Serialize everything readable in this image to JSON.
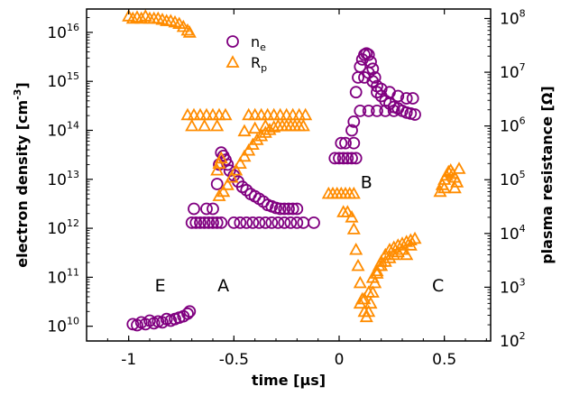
{
  "chart_data": {
    "type": "scatter",
    "xlabel": "time [µs]",
    "ylabel_left": "electron density [cm",
    "ylabel_left_sup": "-3",
    "ylabel_left_end": "]",
    "ylabel_right": "plasma resistance [Ω]",
    "xlim": [
      -1.2,
      0.72
    ],
    "x_ticks": [
      -1,
      -0.5,
      0,
      0.5
    ],
    "x_tick_labels": [
      "-1",
      "-0.5",
      "0",
      "0.5"
    ],
    "y_left_scale": "log",
    "y_left_lim": [
      5000000000.0,
      3e+16
    ],
    "y_left_ticks": [
      10000000000.0,
      100000000000.0,
      1000000000000.0,
      10000000000000.0,
      100000000000000.0,
      1000000000000000.0,
      1e+16
    ],
    "y_left_tick_mantissa": "10",
    "y_left_tick_exponents": [
      "10",
      "11",
      "12",
      "13",
      "14",
      "15",
      "16"
    ],
    "y_right_scale": "log",
    "y_right_lim": [
      100,
      150000000.0
    ],
    "y_right_ticks": [
      100,
      1000,
      10000,
      100000,
      1000000,
      10000000,
      100000000
    ],
    "y_right_tick_mantissa": "10",
    "y_right_tick_exponents": [
      "2",
      "3",
      "4",
      "5",
      "6",
      "7",
      "8"
    ],
    "legend_placement": "top-center",
    "colors": {
      "ne": "#800080",
      "rp": "#ff8c00"
    },
    "annotations": [
      {
        "text": "E",
        "x": -0.85,
        "y_left": 70000000000.0
      },
      {
        "text": "A",
        "x": -0.55,
        "y_left": 70000000000.0
      },
      {
        "text": "B",
        "x": 0.13,
        "y_left": 9000000000000.0
      },
      {
        "text": "C",
        "x": 0.47,
        "y_left": 70000000000.0
      }
    ],
    "series": [
      {
        "name": "n",
        "name_sub": "e",
        "marker": "circle",
        "axis": "left",
        "points": [
          [
            -0.98,
            11000000000.0
          ],
          [
            -0.96,
            10500000000.0
          ],
          [
            -0.94,
            12000000000.0
          ],
          [
            -0.92,
            11000000000.0
          ],
          [
            -0.9,
            13000000000.0
          ],
          [
            -0.88,
            11500000000.0
          ],
          [
            -0.86,
            12500000000.0
          ],
          [
            -0.84,
            12000000000.0
          ],
          [
            -0.82,
            14000000000.0
          ],
          [
            -0.8,
            13000000000.0
          ],
          [
            -0.78,
            14000000000.0
          ],
          [
            -0.76,
            15000000000.0
          ],
          [
            -0.74,
            16000000000.0
          ],
          [
            -0.72,
            18000000000.0
          ],
          [
            -0.71,
            20000000000.0
          ],
          [
            -0.7,
            1300000000000.0
          ],
          [
            -0.68,
            1300000000000.0
          ],
          [
            -0.66,
            1300000000000.0
          ],
          [
            -0.64,
            1300000000000.0
          ],
          [
            -0.62,
            1300000000000.0
          ],
          [
            -0.6,
            1300000000000.0
          ],
          [
            -0.58,
            1300000000000.0
          ],
          [
            -0.56,
            1300000000000.0
          ],
          [
            -0.69,
            2500000000000.0
          ],
          [
            -0.63,
            2500000000000.0
          ],
          [
            -0.6,
            2500000000000.0
          ],
          [
            -0.58,
            8000000000000.0
          ],
          [
            -0.57,
            20000000000000.0
          ],
          [
            -0.56,
            35000000000000.0
          ],
          [
            -0.55,
            30000000000000.0
          ],
          [
            -0.54,
            25000000000000.0
          ],
          [
            -0.53,
            20000000000000.0
          ],
          [
            -0.52,
            15000000000000.0
          ],
          [
            -0.5,
            12000000000000.0
          ],
          [
            -0.48,
            9000000000000.0
          ],
          [
            -0.46,
            7000000000000.0
          ],
          [
            -0.44,
            6000000000000.0
          ],
          [
            -0.42,
            5000000000000.0
          ],
          [
            -0.4,
            4500000000000.0
          ],
          [
            -0.38,
            4000000000000.0
          ],
          [
            -0.36,
            3500000000000.0
          ],
          [
            -0.34,
            3000000000000.0
          ],
          [
            -0.32,
            2800000000000.0
          ],
          [
            -0.3,
            2600000000000.0
          ],
          [
            -0.28,
            2500000000000.0
          ],
          [
            -0.26,
            2500000000000.0
          ],
          [
            -0.24,
            2500000000000.0
          ],
          [
            -0.22,
            2500000000000.0
          ],
          [
            -0.2,
            2500000000000.0
          ],
          [
            -0.5,
            1300000000000.0
          ],
          [
            -0.47,
            1300000000000.0
          ],
          [
            -0.44,
            1300000000000.0
          ],
          [
            -0.41,
            1300000000000.0
          ],
          [
            -0.38,
            1300000000000.0
          ],
          [
            -0.35,
            1300000000000.0
          ],
          [
            -0.32,
            1300000000000.0
          ],
          [
            -0.29,
            1300000000000.0
          ],
          [
            -0.26,
            1300000000000.0
          ],
          [
            -0.23,
            1300000000000.0
          ],
          [
            -0.2,
            1300000000000.0
          ],
          [
            -0.17,
            1300000000000.0
          ],
          [
            -0.12,
            1300000000000.0
          ],
          [
            -0.02,
            27000000000000.0
          ],
          [
            0.0,
            27000000000000.0
          ],
          [
            0.02,
            27000000000000.0
          ],
          [
            0.04,
            27000000000000.0
          ],
          [
            0.06,
            27000000000000.0
          ],
          [
            0.08,
            27000000000000.0
          ],
          [
            0.01,
            55000000000000.0
          ],
          [
            0.03,
            55000000000000.0
          ],
          [
            0.07,
            55000000000000.0
          ],
          [
            0.06,
            100000000000000.0
          ],
          [
            0.07,
            150000000000000.0
          ],
          [
            0.08,
            600000000000000.0
          ],
          [
            0.09,
            1200000000000000.0
          ],
          [
            0.1,
            2000000000000000.0
          ],
          [
            0.11,
            2800000000000000.0
          ],
          [
            0.12,
            3500000000000000.0
          ],
          [
            0.13,
            3700000000000000.0
          ],
          [
            0.14,
            3500000000000000.0
          ],
          [
            0.15,
            2500000000000000.0
          ],
          [
            0.16,
            1800000000000000.0
          ],
          [
            0.17,
            1200000000000000.0
          ],
          [
            0.18,
            800000000000000.0
          ],
          [
            0.2,
            500000000000000.0
          ],
          [
            0.22,
            400000000000000.0
          ],
          [
            0.24,
            350000000000000.0
          ],
          [
            0.26,
            300000000000000.0
          ],
          [
            0.28,
            280000000000000.0
          ],
          [
            0.3,
            250000000000000.0
          ],
          [
            0.32,
            230000000000000.0
          ],
          [
            0.34,
            220000000000000.0
          ],
          [
            0.36,
            210000000000000.0
          ],
          [
            0.1,
            250000000000000.0
          ],
          [
            0.14,
            250000000000000.0
          ],
          [
            0.18,
            250000000000000.0
          ],
          [
            0.22,
            250000000000000.0
          ],
          [
            0.26,
            250000000000000.0
          ],
          [
            0.2,
            700000000000000.0
          ],
          [
            0.24,
            600000000000000.0
          ],
          [
            0.28,
            500000000000000.0
          ],
          [
            0.32,
            450000000000000.0
          ],
          [
            0.35,
            450000000000000.0
          ],
          [
            0.12,
            1200000000000000.0
          ],
          [
            0.14,
            1500000000000000.0
          ],
          [
            0.16,
            1000000000000000.0
          ],
          [
            0.18,
            600000000000000.0
          ]
        ]
      },
      {
        "name": "R",
        "name_sub": "p",
        "marker": "triangle",
        "axis": "right",
        "points": [
          [
            -1.0,
            110000000.0
          ],
          [
            -0.98,
            100000000.0
          ],
          [
            -0.96,
            105000000.0
          ],
          [
            -0.94,
            100000000.0
          ],
          [
            -0.92,
            110000000.0
          ],
          [
            -0.9,
            100000000.0
          ],
          [
            -0.88,
            100000000.0
          ],
          [
            -0.86,
            100000000.0
          ],
          [
            -0.84,
            95000000.0
          ],
          [
            -0.82,
            90000000.0
          ],
          [
            -0.8,
            90000000.0
          ],
          [
            -0.78,
            85000000.0
          ],
          [
            -0.76,
            80000000.0
          ],
          [
            -0.74,
            70000000.0
          ],
          [
            -0.72,
            60000000.0
          ],
          [
            -0.71,
            55000000.0
          ],
          [
            -0.72,
            1600000.0
          ],
          [
            -0.69,
            1600000.0
          ],
          [
            -0.66,
            1600000.0
          ],
          [
            -0.63,
            1600000.0
          ],
          [
            -0.6,
            1600000.0
          ],
          [
            -0.57,
            1600000.0
          ],
          [
            -0.54,
            1600000.0
          ],
          [
            -0.7,
            1000000.0
          ],
          [
            -0.64,
            1000000.0
          ],
          [
            -0.58,
            1000000.0
          ],
          [
            -0.58,
            150000.0
          ],
          [
            -0.57,
            200000.0
          ],
          [
            -0.56,
            250000.0
          ],
          [
            -0.57,
            50000.0
          ],
          [
            -0.55,
            60000.0
          ],
          [
            -0.53,
            80000.0
          ],
          [
            -0.51,
            110000.0
          ],
          [
            -0.49,
            150000.0
          ],
          [
            -0.47,
            200000.0
          ],
          [
            -0.45,
            270000.0
          ],
          [
            -0.43,
            350000.0
          ],
          [
            -0.41,
            450000.0
          ],
          [
            -0.39,
            550000.0
          ],
          [
            -0.37,
            650000.0
          ],
          [
            -0.35,
            750000.0
          ],
          [
            -0.33,
            850000.0
          ],
          [
            -0.31,
            950000.0
          ],
          [
            -0.29,
            1000000.0
          ],
          [
            -0.27,
            1000000.0
          ],
          [
            -0.25,
            1000000.0
          ],
          [
            -0.23,
            1000000.0
          ],
          [
            -0.21,
            1000000.0
          ],
          [
            -0.19,
            1000000.0
          ],
          [
            -0.17,
            1000000.0
          ],
          [
            -0.43,
            1600000.0
          ],
          [
            -0.4,
            1600000.0
          ],
          [
            -0.37,
            1600000.0
          ],
          [
            -0.34,
            1600000.0
          ],
          [
            -0.31,
            1600000.0
          ],
          [
            -0.28,
            1600000.0
          ],
          [
            -0.25,
            1600000.0
          ],
          [
            -0.22,
            1600000.0
          ],
          [
            -0.19,
            1600000.0
          ],
          [
            -0.16,
            1600000.0
          ],
          [
            -0.45,
            800000.0
          ],
          [
            -0.4,
            900000.0
          ],
          [
            -0.35,
            1000000.0
          ],
          [
            -0.05,
            55000.0
          ],
          [
            -0.03,
            55000.0
          ],
          [
            -0.01,
            55000.0
          ],
          [
            0.01,
            55000.0
          ],
          [
            0.03,
            55000.0
          ],
          [
            0.05,
            55000.0
          ],
          [
            0.07,
            55000.0
          ],
          [
            0.02,
            25000.0
          ],
          [
            0.04,
            25000.0
          ],
          [
            0.06,
            20000.0
          ],
          [
            0.07,
            12000.0
          ],
          [
            0.08,
            5000.0
          ],
          [
            0.09,
            2500.0
          ],
          [
            0.1,
            1200.0
          ],
          [
            0.11,
            600.0
          ],
          [
            0.12,
            350.0
          ],
          [
            0.13,
            280.0
          ],
          [
            0.14,
            350.0
          ],
          [
            0.15,
            500.0
          ],
          [
            0.16,
            800.0
          ],
          [
            0.17,
            1200.0
          ],
          [
            0.18,
            1800.0
          ],
          [
            0.19,
            2500.0
          ],
          [
            0.2,
            3000.0
          ],
          [
            0.22,
            4000.0
          ],
          [
            0.24,
            5000.0
          ],
          [
            0.26,
            5500.0
          ],
          [
            0.28,
            6000.0
          ],
          [
            0.3,
            6500.0
          ],
          [
            0.32,
            7000.0
          ],
          [
            0.34,
            7500.0
          ],
          [
            0.36,
            8000.0
          ],
          [
            0.1,
            500.0
          ],
          [
            0.12,
            600.0
          ],
          [
            0.14,
            800.0
          ],
          [
            0.16,
            1500.0
          ],
          [
            0.18,
            2000.0
          ],
          [
            0.2,
            2500.0
          ],
          [
            0.22,
            3000.0
          ],
          [
            0.24,
            3500.0
          ],
          [
            0.26,
            4000.0
          ],
          [
            0.28,
            4500.0
          ],
          [
            0.3,
            5000.0
          ],
          [
            0.32,
            4000.0
          ],
          [
            0.34,
            6000.0
          ],
          [
            0.48,
            60000.0
          ],
          [
            0.49,
            80000.0
          ],
          [
            0.5,
            100000.0
          ],
          [
            0.51,
            120000.0
          ],
          [
            0.52,
            140000.0
          ],
          [
            0.53,
            150000.0
          ],
          [
            0.54,
            130000.0
          ],
          [
            0.55,
            110000.0
          ],
          [
            0.56,
            90000.0
          ],
          [
            0.57,
            160000.0
          ],
          [
            0.55,
            70000.0
          ],
          [
            0.5,
            70000.0
          ]
        ]
      }
    ]
  }
}
